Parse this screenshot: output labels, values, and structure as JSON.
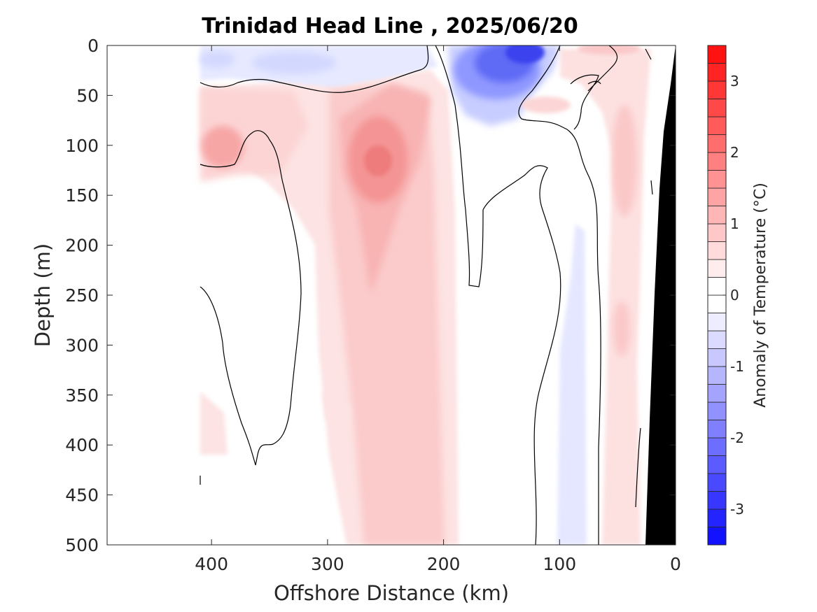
{
  "chart_data": {
    "type": "heatmap",
    "title": "Trinidad Head Line , 2025/06/20",
    "xlabel": "Offshore Distance (km)",
    "ylabel": "Depth (m)",
    "xlim": [
      490,
      0
    ],
    "ylim": [
      0,
      500
    ],
    "x_ticks": [
      400,
      300,
      200,
      100,
      0
    ],
    "y_ticks": [
      0,
      50,
      100,
      150,
      200,
      250,
      300,
      350,
      400,
      450,
      500
    ],
    "x_tick_labels": [
      "400",
      "300",
      "200",
      "100",
      "0"
    ],
    "y_tick_labels": [
      "0",
      "50",
      "100",
      "150",
      "200",
      "250",
      "300",
      "350",
      "400",
      "450",
      "500"
    ],
    "colorbar": {
      "label": "Anomaly of Temperature (°C)",
      "range": [
        -3.5,
        3.5
      ],
      "step": 0.25,
      "ticks": [
        3,
        2,
        1,
        0,
        -1,
        -2,
        -3
      ],
      "tick_labels": [
        "3",
        "2",
        "1",
        "0",
        "-1",
        "-2",
        "-3"
      ],
      "neg_color": "#0000ff",
      "pos_color": "#ff0000",
      "zero_color": "#ffffff"
    },
    "data_extent_km": [
      410,
      0
    ],
    "contour_levels": [
      0
    ],
    "features": [
      {
        "kind": "cold",
        "anomaly": -2.5,
        "x_range": [
          180,
          100
        ],
        "depth_range": [
          0,
          80
        ],
        "core": [
          130,
          5
        ]
      },
      {
        "kind": "cold",
        "anomaly": -0.5,
        "x_range": [
          410,
          200
        ],
        "depth_range": [
          0,
          40
        ]
      },
      {
        "kind": "cold",
        "anomaly": -0.25,
        "x_range": [
          100,
          75
        ],
        "depth_range": [
          180,
          500
        ]
      },
      {
        "kind": "warm",
        "anomaly": 1.5,
        "x_range": [
          290,
          200
        ],
        "depth_range": [
          60,
          200
        ],
        "core": [
          255,
          120
        ]
      },
      {
        "kind": "warm",
        "anomaly": 1.0,
        "x_range": [
          410,
          350
        ],
        "depth_range": [
          60,
          160
        ],
        "core": [
          390,
          105
        ]
      },
      {
        "kind": "warm",
        "anomaly": 0.75,
        "x_range": [
          290,
          200
        ],
        "depth_range": [
          200,
          500
        ]
      },
      {
        "kind": "warm",
        "anomaly": 0.5,
        "x_range": [
          60,
          20
        ],
        "depth_range": [
          0,
          500
        ]
      }
    ],
    "bathymetry": {
      "color": "#000000",
      "x_range_at_bottom": [
        28,
        0
      ],
      "x_at_top": 0
    }
  }
}
